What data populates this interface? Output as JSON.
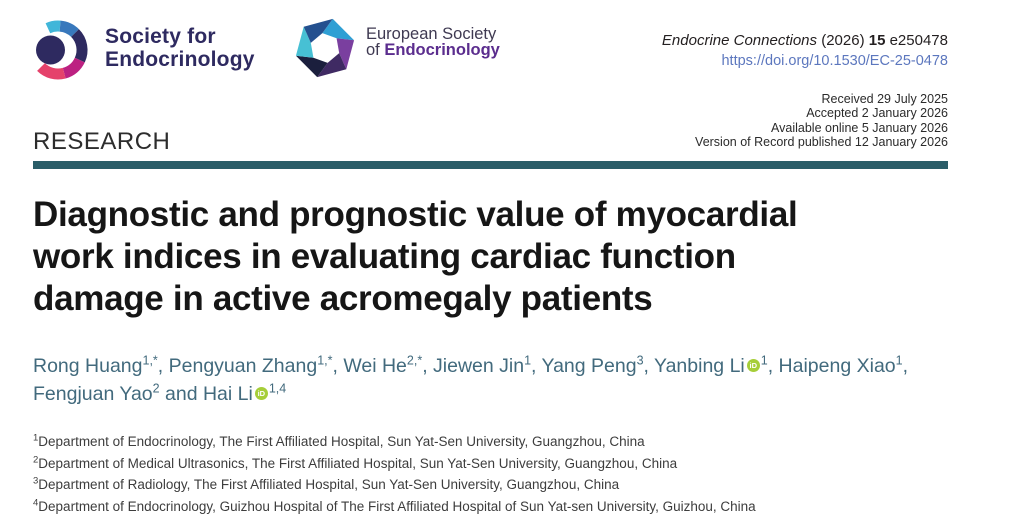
{
  "colors": {
    "accent_teal": "#2a5d68",
    "link_blue": "#5c77be",
    "author_teal": "#426a7d",
    "sfe_navy": "#2e2a60",
    "ese_purple": "#5b2d8e",
    "orcid_green": "#a6ce39"
  },
  "logos": {
    "sfe": {
      "line1": "Society for",
      "line2": "Endocrinology"
    },
    "ese": {
      "line1": "European Society",
      "line2_prefix": "of ",
      "line2_name": "Endocrinology"
    }
  },
  "journal": {
    "name": "Endocrine Connections",
    "year": "(2026)",
    "volume": "15",
    "article_id": "e250478",
    "doi": "https://doi.org/10.1530/EC-25-0478"
  },
  "history": [
    "Received 29 July 2025",
    "Accepted 2 January 2026",
    "Available online 5 January 2026",
    "Version of Record published 12 January 2026"
  ],
  "article": {
    "section_label": "RESEARCH",
    "title_lines": [
      "Diagnostic and prognostic value of myocardial",
      "work indices in evaluating cardiac function",
      "damage in active acromegaly patients"
    ]
  },
  "orcid_label": "iD",
  "authors": {
    "line1": [
      {
        "name": "Rong Huang",
        "sup": "1,*",
        "orcid": false,
        "tail": ", "
      },
      {
        "name": "Pengyuan Zhang",
        "sup": "1,*",
        "orcid": false,
        "tail": ", "
      },
      {
        "name": "Wei He",
        "sup": "2,*",
        "orcid": false,
        "tail": ", "
      },
      {
        "name": "Jiewen Jin",
        "sup": "1",
        "orcid": false,
        "tail": ", "
      },
      {
        "name": "Yang Peng",
        "sup": "3",
        "orcid": false,
        "tail": ", "
      },
      {
        "name": "Yanbing Li",
        "sup": "1",
        "orcid": true,
        "tail": ", "
      },
      {
        "name": "Haipeng Xiao",
        "sup": "1",
        "orcid": false,
        "tail": ","
      }
    ],
    "line2": [
      {
        "name": "Fengjuan Yao",
        "sup": "2",
        "orcid": false,
        "tail": " and "
      },
      {
        "name": "Hai Li",
        "sup": "1,4",
        "orcid": true,
        "tail": ""
      }
    ]
  },
  "affiliations": [
    {
      "sup": "1",
      "text": "Department of Endocrinology, The First Affiliated Hospital, Sun Yat-Sen University, Guangzhou, China"
    },
    {
      "sup": "2",
      "text": "Department of Medical Ultrasonics, The First Affiliated Hospital, Sun Yat-Sen University, Guangzhou, China"
    },
    {
      "sup": "3",
      "text": "Department of Radiology, The First Affiliated Hospital, Sun Yat-Sen University, Guangzhou, China"
    },
    {
      "sup": "4",
      "text": "Department of Endocrinology, Guizhou Hospital of The First Affiliated Hospital of Sun Yat-sen University, Guizhou, China"
    }
  ]
}
